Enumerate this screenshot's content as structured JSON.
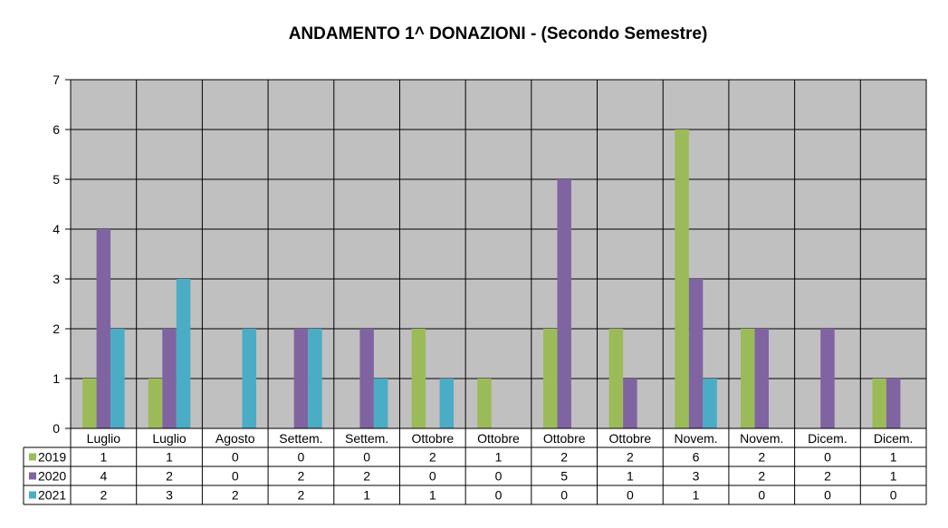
{
  "chart_data": {
    "type": "bar",
    "title": "ANDAMENTO  1^ DONAZIONI   -  (Secondo Semestre)",
    "categories": [
      "Luglio",
      "Luglio",
      "Agosto",
      "Settem.",
      "Settem.",
      "Ottobre",
      "Ottobre",
      "Ottobre",
      "Ottobre",
      "Novem.",
      "Novem.",
      "Dicem.",
      "Dicem."
    ],
    "series": [
      {
        "name": "2019",
        "color": "#9bbb59",
        "values": [
          1,
          1,
          0,
          0,
          0,
          2,
          1,
          2,
          2,
          6,
          2,
          0,
          1
        ]
      },
      {
        "name": "2020",
        "color": "#8064a2",
        "values": [
          4,
          2,
          0,
          2,
          2,
          0,
          0,
          5,
          1,
          3,
          2,
          2,
          1
        ]
      },
      {
        "name": "2021",
        "color": "#4bacc6",
        "values": [
          2,
          3,
          2,
          2,
          1,
          1,
          0,
          0,
          0,
          1,
          0,
          0,
          0
        ]
      }
    ],
    "ylim": [
      0,
      7
    ],
    "yticks": [
      "0",
      "1",
      "2",
      "3",
      "4",
      "5",
      "6",
      "7"
    ],
    "grid": true,
    "plot_background": "#c0c0c0",
    "legend": "data-table"
  }
}
